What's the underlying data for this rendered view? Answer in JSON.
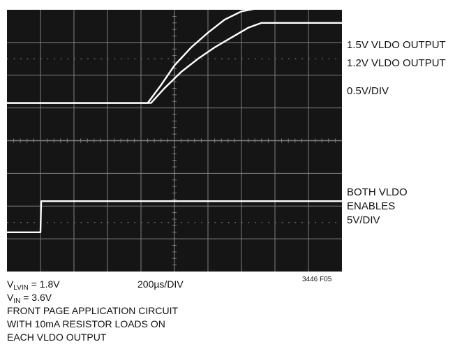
{
  "chart_data": {
    "type": "line",
    "x_divisions": 10,
    "y_divisions": 8,
    "series": [
      {
        "name": "1.5V VLDO OUTPUT",
        "x": [
          0,
          4.2,
          4.6,
          5.0,
          5.5,
          6.0,
          6.5,
          7.0,
          7.5,
          7.9,
          10
        ],
        "y": [
          5.15,
          5.15,
          5.7,
          6.3,
          6.85,
          7.3,
          7.7,
          7.95,
          8.05,
          8.05,
          8.05
        ]
      },
      {
        "name": "1.2V VLDO OUTPUT",
        "x": [
          0,
          4.3,
          4.7,
          5.2,
          5.7,
          6.2,
          6.7,
          7.2,
          7.6,
          10
        ],
        "y": [
          5.15,
          5.15,
          5.6,
          6.1,
          6.5,
          6.85,
          7.15,
          7.45,
          7.6,
          7.6
        ]
      },
      {
        "name": "BOTH VLDO ENABLES",
        "x": [
          0,
          1.0,
          1.02,
          10
        ],
        "y": [
          1.2,
          1.2,
          2.15,
          2.15
        ]
      }
    ]
  },
  "trace_labels": {
    "out15": "1.5V VLDO OUTPUT",
    "out12": "1.2V VLDO OUTPUT",
    "out_scale": "0.5V/DIV",
    "enables_line1": "BOTH VLDO",
    "enables_line2": "ENABLES",
    "enables_scale": "5V/DIV"
  },
  "notes": {
    "vlvin_sym": "V",
    "vlvin_sub": "LVIN",
    "vlvin_val": " = 1.8V",
    "vin_sym": "V",
    "vin_sub": "IN",
    "vin_val": " = 3.6V",
    "line3": "FRONT PAGE APPLICATION CIRCUIT",
    "line4": "WITH 10mA RESISTOR LOADS ON",
    "line5": "EACH VLDO OUTPUT",
    "timebase": "200µs/DIV",
    "fig_id": "3446 F05"
  },
  "colors": {
    "screen": "#151515",
    "grid": "#7f7f7f",
    "trace": "#ffffff"
  }
}
